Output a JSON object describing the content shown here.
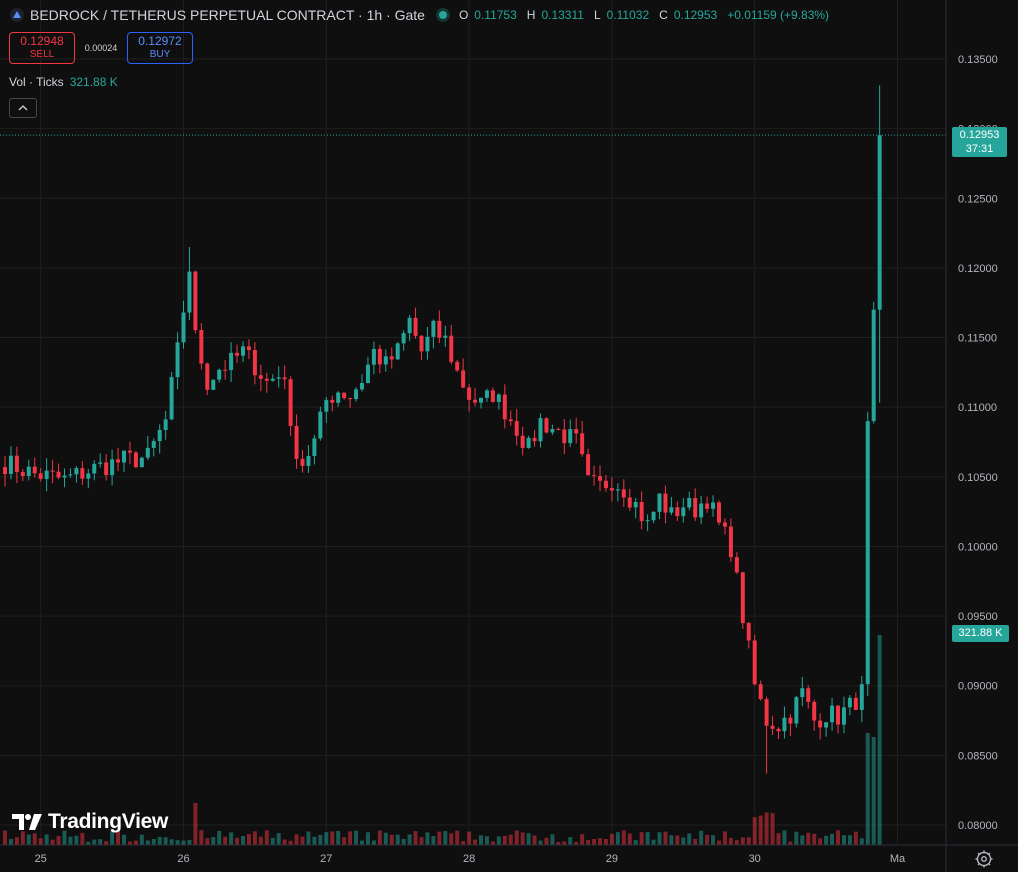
{
  "header": {
    "title": "BEDROCK / TETHERUS PERPETUAL CONTRACT · 1h · Gate",
    "o_label": "O",
    "o": "0.11753",
    "h_label": "H",
    "h": "0.13311",
    "l_label": "L",
    "l": "0.11032",
    "c_label": "C",
    "c": "0.12953",
    "change": "+0.01159 (+9.83%)"
  },
  "trade": {
    "sell_price": "0.12948",
    "sell_label": "SELL",
    "spread": "0.00024",
    "buy_price": "0.12972",
    "buy_label": "BUY"
  },
  "volume": {
    "label": "Vol · Ticks",
    "value": "321.88 K"
  },
  "last_price": {
    "price": "0.12953",
    "countdown": "37:31"
  },
  "volume_tag": "321.88 K",
  "branding": "TradingView",
  "colors": {
    "up": "#26a69a",
    "down": "#f23645",
    "background": "#0f0f0f",
    "grid": "#1f1f1f",
    "axis_text": "#b2b5be"
  },
  "chart_data": {
    "type": "candlestick",
    "interval": "1h",
    "x_ticks": [
      {
        "label": "25",
        "index": 6
      },
      {
        "label": "26",
        "index": 30
      },
      {
        "label": "27",
        "index": 54
      },
      {
        "label": "28",
        "index": 78
      },
      {
        "label": "29",
        "index": 102
      },
      {
        "label": "30",
        "index": 126
      },
      {
        "label": "Ma",
        "index": 150
      }
    ],
    "y_ticks": [
      "0.13500",
      "0.13000",
      "0.12500",
      "0.12000",
      "0.11500",
      "0.11000",
      "0.10500",
      "0.10000",
      "0.09500",
      "0.09000",
      "0.08500",
      "0.08000"
    ],
    "ylim": [
      0.0787,
      0.1372
    ],
    "x_count": 148,
    "last_price": 0.12953,
    "waypoints": [
      [
        0,
        0.106
      ],
      [
        5,
        0.1052
      ],
      [
        10,
        0.1048
      ],
      [
        15,
        0.1056
      ],
      [
        20,
        0.1062
      ],
      [
        24,
        0.1064
      ],
      [
        27,
        0.109
      ],
      [
        29,
        0.114
      ],
      [
        30,
        0.117
      ],
      [
        31,
        0.12
      ],
      [
        32,
        0.115
      ],
      [
        34,
        0.1118
      ],
      [
        36,
        0.1128
      ],
      [
        38,
        0.1132
      ],
      [
        40,
        0.114
      ],
      [
        42,
        0.113
      ],
      [
        44,
        0.1118
      ],
      [
        47,
        0.1125
      ],
      [
        48,
        0.108
      ],
      [
        50,
        0.106
      ],
      [
        52,
        0.1075
      ],
      [
        54,
        0.1105
      ],
      [
        56,
        0.1112
      ],
      [
        58,
        0.1108
      ],
      [
        60,
        0.112
      ],
      [
        62,
        0.114
      ],
      [
        64,
        0.113
      ],
      [
        66,
        0.114
      ],
      [
        68,
        0.1162
      ],
      [
        70,
        0.114
      ],
      [
        72,
        0.1155
      ],
      [
        74,
        0.1148
      ],
      [
        76,
        0.1125
      ],
      [
        78,
        0.1108
      ],
      [
        80,
        0.1102
      ],
      [
        82,
        0.111
      ],
      [
        84,
        0.1098
      ],
      [
        86,
        0.1085
      ],
      [
        88,
        0.107
      ],
      [
        90,
        0.109
      ],
      [
        92,
        0.1085
      ],
      [
        94,
        0.108
      ],
      [
        96,
        0.1075
      ],
      [
        98,
        0.1045
      ],
      [
        100,
        0.1043
      ],
      [
        102,
        0.1048
      ],
      [
        104,
        0.1042
      ],
      [
        106,
        0.103
      ],
      [
        108,
        0.1015
      ],
      [
        110,
        0.1035
      ],
      [
        112,
        0.1022
      ],
      [
        114,
        0.103
      ],
      [
        116,
        0.1027
      ],
      [
        118,
        0.1035
      ],
      [
        120,
        0.1015
      ],
      [
        122,
        0.1
      ],
      [
        124,
        0.095
      ],
      [
        126,
        0.09
      ],
      [
        128,
        0.0875
      ],
      [
        130,
        0.0872
      ],
      [
        132,
        0.088
      ],
      [
        134,
        0.0895
      ],
      [
        136,
        0.0875
      ],
      [
        138,
        0.088
      ],
      [
        140,
        0.0878
      ],
      [
        142,
        0.0885
      ],
      [
        144,
        0.0895
      ],
      [
        145,
        0.109
      ],
      [
        146,
        0.117
      ],
      [
        147,
        0.12953
      ]
    ]
  }
}
